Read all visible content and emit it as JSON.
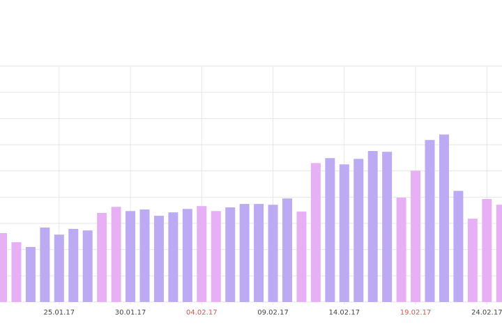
{
  "chart_data": {
    "type": "bar",
    "categories": [
      null,
      null,
      null,
      null,
      "25.01.17",
      null,
      null,
      null,
      null,
      "30.01.17",
      null,
      null,
      null,
      null,
      "04.02.17",
      null,
      null,
      null,
      null,
      "09.02.17",
      null,
      null,
      null,
      null,
      "14.02.17",
      null,
      null,
      null,
      null,
      "19.02.17",
      null,
      null,
      null,
      null,
      "24.02.17",
      null
    ],
    "label_colors": [
      null,
      null,
      null,
      null,
      "#444444",
      null,
      null,
      null,
      null,
      "#444444",
      null,
      null,
      null,
      null,
      "#d9534f",
      null,
      null,
      null,
      null,
      "#444444",
      null,
      null,
      null,
      null,
      "#444444",
      null,
      null,
      null,
      null,
      "#d9534f",
      null,
      null,
      null,
      null,
      "#444444",
      null
    ],
    "values": [
      2.63,
      2.28,
      2.1,
      2.84,
      2.57,
      2.79,
      2.73,
      3.4,
      3.63,
      3.47,
      3.53,
      3.29,
      3.42,
      3.55,
      3.66,
      3.47,
      3.61,
      3.74,
      3.74,
      3.71,
      3.95,
      3.45,
      5.3,
      5.49,
      5.25,
      5.46,
      5.76,
      5.73,
      3.98,
      5.01,
      6.18,
      6.39,
      4.24,
      3.18,
      3.93,
      3.71
    ],
    "colors": [
      "#e8b0f4",
      "#e8b0f4",
      "#bcaaf2",
      "#bcaaf2",
      "#bcaaf2",
      "#bcaaf2",
      "#bcaaf2",
      "#e8b0f4",
      "#e8b0f4",
      "#bcaaf2",
      "#bcaaf2",
      "#bcaaf2",
      "#bcaaf2",
      "#bcaaf2",
      "#e8b0f4",
      "#e8b0f4",
      "#bcaaf2",
      "#bcaaf2",
      "#bcaaf2",
      "#bcaaf2",
      "#bcaaf2",
      "#e8b0f4",
      "#e8b0f4",
      "#bcaaf2",
      "#bcaaf2",
      "#bcaaf2",
      "#bcaaf2",
      "#bcaaf2",
      "#e8b0f4",
      "#e8b0f4",
      "#bcaaf2",
      "#bcaaf2",
      "#bcaaf2",
      "#e8b0f4",
      "#e8b0f4",
      "#e8b0f4"
    ],
    "ylim": [
      0,
      9
    ],
    "yticks": [
      0,
      1,
      2,
      3,
      4,
      5,
      6,
      7,
      8,
      9
    ],
    "grid": true
  }
}
